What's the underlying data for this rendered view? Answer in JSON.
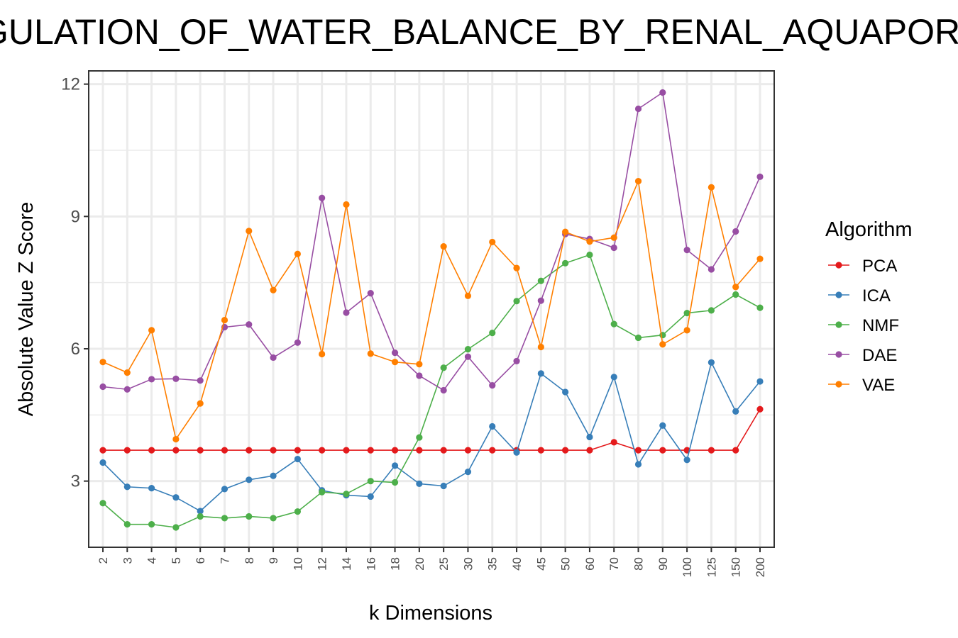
{
  "chart_data": {
    "type": "line",
    "title": "REGULATION_OF_WATER_BALANCE_BY_RENAL_AQUAPORINS",
    "xlabel": "k Dimensions",
    "ylabel": "Absolute Value Z Score",
    "legend_title": "Algorithm",
    "legend_position": "right",
    "grid": true,
    "ylim": [
      1.5,
      12.3
    ],
    "yticks": [
      "3",
      "6",
      "9",
      "12"
    ],
    "categories": [
      "2",
      "3",
      "4",
      "5",
      "6",
      "7",
      "8",
      "9",
      "10",
      "12",
      "14",
      "16",
      "18",
      "20",
      "25",
      "30",
      "35",
      "40",
      "45",
      "50",
      "60",
      "70",
      "80",
      "90",
      "100",
      "125",
      "150",
      "200"
    ],
    "series": [
      {
        "name": "PCA",
        "color": "#e41a1c",
        "values": [
          3.7,
          3.7,
          3.7,
          3.7,
          3.7,
          3.7,
          3.7,
          3.7,
          3.7,
          3.7,
          3.7,
          3.7,
          3.7,
          3.7,
          3.7,
          3.7,
          3.7,
          3.7,
          3.7,
          3.7,
          3.7,
          3.88,
          3.7,
          3.7,
          3.7,
          3.7,
          3.7,
          4.63
        ]
      },
      {
        "name": "ICA",
        "color": "#377eb8",
        "values": [
          3.42,
          2.87,
          2.84,
          2.63,
          2.32,
          2.82,
          3.03,
          3.12,
          3.5,
          2.79,
          2.68,
          2.65,
          3.35,
          2.94,
          2.89,
          3.21,
          4.24,
          3.65,
          5.44,
          5.02,
          4.0,
          5.36,
          3.38,
          4.26,
          3.48,
          5.69,
          4.58,
          5.26
        ]
      },
      {
        "name": "NMF",
        "color": "#4daf4a",
        "values": [
          2.5,
          2.02,
          2.02,
          1.95,
          2.2,
          2.16,
          2.2,
          2.16,
          2.31,
          2.75,
          2.71,
          3.0,
          2.97,
          3.99,
          5.57,
          5.99,
          6.36,
          7.08,
          7.54,
          7.94,
          8.13,
          6.56,
          6.25,
          6.31,
          6.81,
          6.87,
          7.23,
          6.93
        ]
      },
      {
        "name": "DAE",
        "color": "#984ea3",
        "values": [
          5.14,
          5.08,
          5.31,
          5.32,
          5.28,
          6.49,
          6.55,
          5.8,
          6.14,
          9.42,
          6.82,
          7.26,
          5.91,
          5.39,
          5.06,
          5.82,
          5.17,
          5.72,
          7.09,
          8.6,
          8.49,
          8.29,
          11.44,
          11.81,
          8.24,
          7.8,
          8.66,
          9.9
        ]
      },
      {
        "name": "VAE",
        "color": "#ff7f00",
        "values": [
          5.7,
          5.46,
          6.42,
          3.95,
          4.76,
          6.65,
          8.67,
          7.33,
          8.15,
          5.88,
          9.27,
          5.89,
          5.7,
          5.65,
          8.32,
          7.2,
          8.42,
          7.83,
          6.04,
          8.65,
          8.43,
          8.52,
          9.8,
          6.1,
          6.42,
          9.66,
          7.4,
          8.04
        ]
      }
    ]
  }
}
